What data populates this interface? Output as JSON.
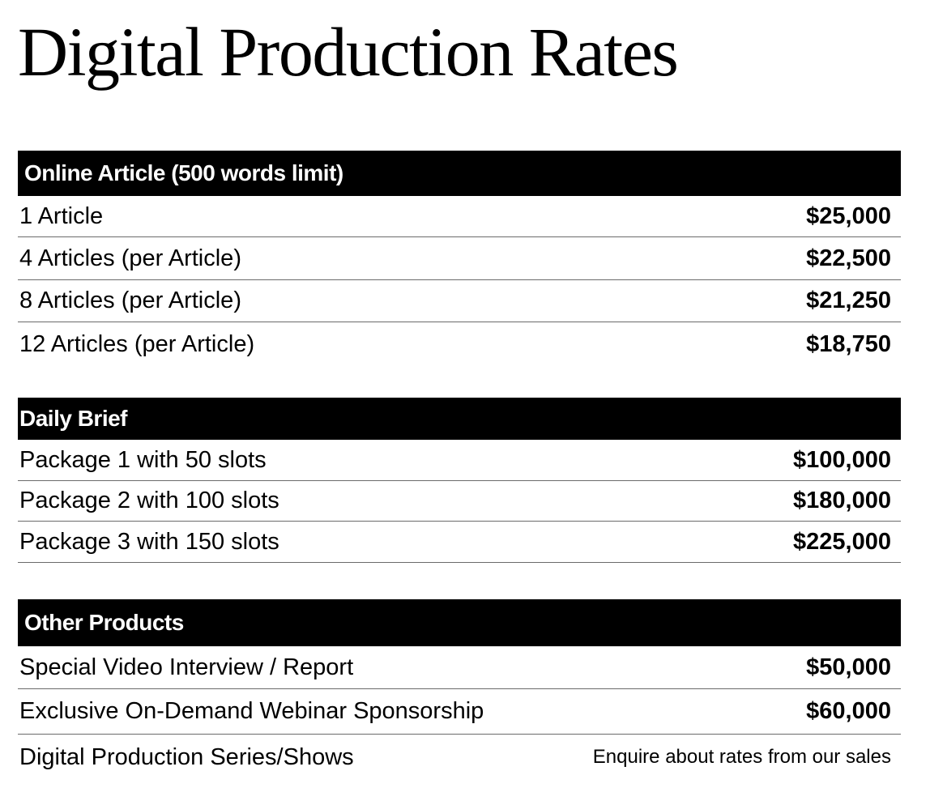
{
  "title": "Digital Production Rates",
  "sections": [
    {
      "header": "Online Article (500 words limit)",
      "rows": [
        {
          "item": "1 Article",
          "price": "$25,000"
        },
        {
          "item": "4 Articles (per Article)",
          "price": "$22,500"
        },
        {
          "item": "8 Articles (per Article)",
          "price": "$21,250"
        },
        {
          "item": "12 Articles (per Article)",
          "price": "$18,750"
        }
      ]
    },
    {
      "header": "Daily Brief",
      "rows": [
        {
          "item": "Package 1 with 50 slots",
          "price": "$100,000"
        },
        {
          "item": "Package 2 with 100 slots",
          "price": "$180,000"
        },
        {
          "item": "Package 3 with 150 slots",
          "price": "$225,000"
        }
      ]
    },
    {
      "header": "Other Products",
      "rows": [
        {
          "item": "Special Video Interview / Report",
          "price": "$50,000"
        },
        {
          "item": "Exclusive On-Demand Webinar Sponsorship",
          "price": "$60,000"
        },
        {
          "item": "Digital Production Series/Shows",
          "note": "Enquire about rates from our sales"
        }
      ]
    }
  ]
}
